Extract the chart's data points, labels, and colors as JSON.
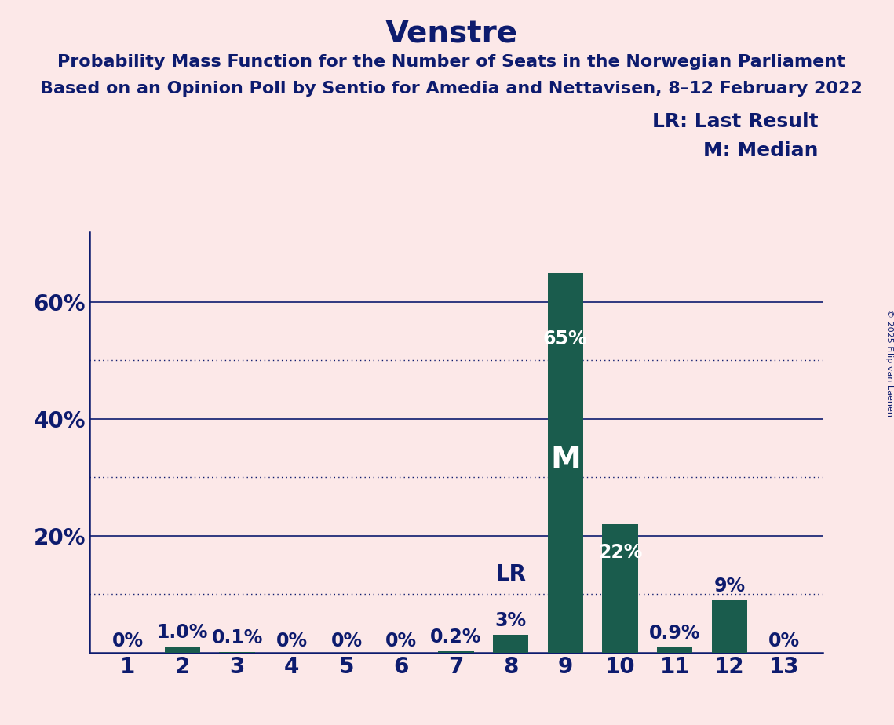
{
  "title": "Venstre",
  "subtitle_line1": "Probability Mass Function for the Number of Seats in the Norwegian Parliament",
  "subtitle_line2": "Based on an Opinion Poll by Sentio for Amedia and Nettavisen, 8–12 February 2022",
  "copyright": "© 2025 Filip van Laenen",
  "categories": [
    1,
    2,
    3,
    4,
    5,
    6,
    7,
    8,
    9,
    10,
    11,
    12,
    13
  ],
  "values": [
    0.0,
    1.0,
    0.1,
    0.0,
    0.0,
    0.0,
    0.2,
    3.0,
    65.0,
    22.0,
    0.9,
    9.0,
    0.0
  ],
  "bar_labels": [
    "0%",
    "1.0%",
    "0.1%",
    "0%",
    "0%",
    "0%",
    "0.2%",
    "3%",
    "65%",
    "22%",
    "0.9%",
    "9%",
    "0%"
  ],
  "bar_color": "#1a5c4d",
  "background_color": "#fce8e8",
  "title_color": "#0d1b6e",
  "axis_color": "#0d1b6e",
  "bar_label_color_outside": "#0d1b6e",
  "bar_label_color_inside": "#ffffff",
  "dotted_lines": [
    10,
    30,
    50
  ],
  "solid_lines": [
    20,
    40,
    60
  ],
  "ylim": [
    0,
    72
  ],
  "lr_seat": 8,
  "median_seat": 9,
  "legend_lr": "LR: Last Result",
  "legend_m": "M: Median",
  "title_fontsize": 28,
  "subtitle_fontsize": 16,
  "axis_label_fontsize": 20,
  "bar_label_fontsize": 17,
  "legend_fontsize": 18,
  "copyright_fontsize": 8
}
